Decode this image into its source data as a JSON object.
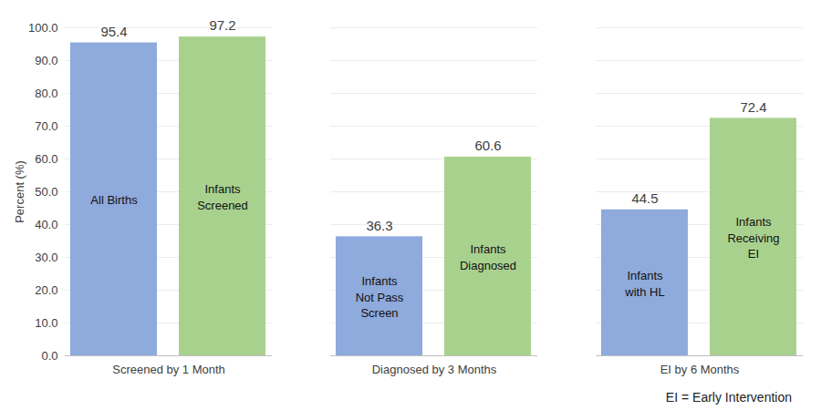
{
  "chart_data": {
    "type": "bar",
    "categories": [
      "Screened by 1 Month",
      "Diagnosed by 3 Months",
      "EI by 6 Months"
    ],
    "series": [
      {
        "color": "#8faadc",
        "values": [
          95.4,
          36.3,
          44.5
        ],
        "labels": [
          "All Births",
          "Infants Not Pass Screen",
          "Infants with HL"
        ]
      },
      {
        "color": "#a9d18e",
        "values": [
          97.2,
          60.6,
          72.4
        ],
        "labels": [
          "Infants Screened",
          "Infants Diagnosed",
          "Infants Receiving EI"
        ]
      }
    ],
    "y_label": "Percent (%)",
    "ylim": [
      0,
      100
    ],
    "yticks": [
      {
        "value": 0,
        "label": "0.0"
      },
      {
        "value": 10,
        "label": "10.0"
      },
      {
        "value": 20,
        "label": "20.0"
      },
      {
        "value": 30,
        "label": "30.0"
      },
      {
        "value": 40,
        "label": "40.0"
      },
      {
        "value": 50,
        "label": "50.0"
      },
      {
        "value": 60,
        "label": "60.0"
      },
      {
        "value": 70,
        "label": "70.0"
      },
      {
        "value": 80,
        "label": "80.0"
      },
      {
        "value": 90,
        "label": "90.0"
      },
      {
        "value": 100,
        "label": "100.0"
      }
    ],
    "grid": true,
    "data_labels": true,
    "annotations": [
      "EI = Early Intervention"
    ]
  }
}
